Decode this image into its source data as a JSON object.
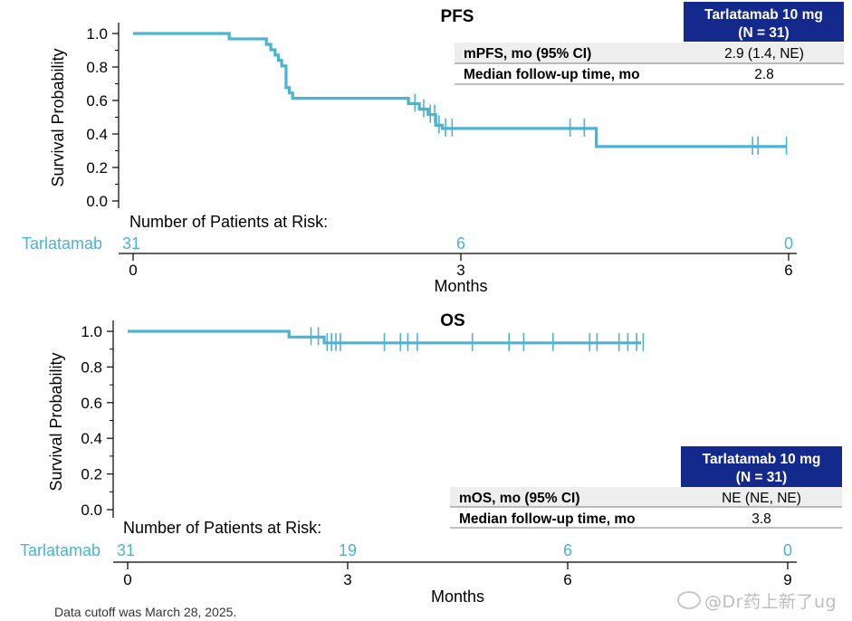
{
  "footer_note": "Data cutoff was March 28, 2025.",
  "watermark": "@Dr药上新了ug",
  "colors": {
    "curve": "#4bb3d4",
    "header_bg": "#14298c",
    "header_text": "#ffffff",
    "row_bg": "#eeeeee",
    "axis": "#000000"
  },
  "chart_data": [
    {
      "type": "line",
      "subtype": "kaplan-meier",
      "title": "PFS",
      "xlabel": "Months",
      "ylabel": "Survival Probability",
      "xlim": [
        0,
        6
      ],
      "ylim": [
        0,
        1
      ],
      "xticks": [
        0,
        3,
        6
      ],
      "yticks": [
        0.0,
        0.2,
        0.4,
        0.6,
        0.8,
        1.0
      ],
      "series": [
        {
          "name": "Tarlatamab",
          "step": [
            [
              0,
              1.0
            ],
            [
              0.88,
              0.968
            ],
            [
              1.22,
              0.935
            ],
            [
              1.26,
              0.903
            ],
            [
              1.3,
              0.871
            ],
            [
              1.33,
              0.839
            ],
            [
              1.36,
              0.806
            ],
            [
              1.4,
              0.677
            ],
            [
              1.43,
              0.645
            ],
            [
              1.46,
              0.613
            ],
            [
              2.52,
              0.581
            ],
            [
              2.62,
              0.548
            ],
            [
              2.7,
              0.516
            ],
            [
              2.77,
              0.452
            ],
            [
              2.83,
              0.433
            ],
            [
              4.22,
              0.433
            ],
            [
              4.24,
              0.325
            ],
            [
              5.98,
              0.325
            ]
          ],
          "censored": [
            [
              2.58,
              0.581
            ],
            [
              2.66,
              0.548
            ],
            [
              2.72,
              0.516
            ],
            [
              2.76,
              0.516
            ],
            [
              2.8,
              0.452
            ],
            [
              2.86,
              0.433
            ],
            [
              2.92,
              0.433
            ],
            [
              4.0,
              0.433
            ],
            [
              4.13,
              0.433
            ],
            [
              5.67,
              0.325
            ],
            [
              5.72,
              0.325
            ],
            [
              5.98,
              0.325
            ]
          ]
        }
      ],
      "risk_table": {
        "title": "Number of Patients at Risk:",
        "row_label": "Tarlatamab",
        "times": [
          0,
          3,
          6
        ],
        "counts": [
          31,
          6,
          0
        ]
      },
      "summary_table": {
        "header_line1": "Tarlatamab 10 mg",
        "header_line2": "(N = 31)",
        "rows": [
          {
            "label": "mPFS, mo (95% CI)",
            "value": "2.9 (1.4, NE)"
          },
          {
            "label": "Median follow-up time, mo",
            "value": "2.8"
          }
        ]
      }
    },
    {
      "type": "line",
      "subtype": "kaplan-meier",
      "title": "OS",
      "xlabel": "Months",
      "ylabel": "Survival Probability",
      "xlim": [
        0,
        9
      ],
      "ylim": [
        0,
        1
      ],
      "xticks": [
        0,
        3,
        6,
        9
      ],
      "yticks": [
        0.0,
        0.2,
        0.4,
        0.6,
        0.8,
        1.0
      ],
      "series": [
        {
          "name": "Tarlatamab",
          "step": [
            [
              0,
              1.0
            ],
            [
              2.2,
              1.0
            ],
            [
              2.2,
              0.968
            ],
            [
              2.68,
              0.968
            ],
            [
              2.68,
              0.935
            ],
            [
              7.0,
              0.935
            ]
          ],
          "censored": [
            [
              2.5,
              0.968
            ],
            [
              2.6,
              0.968
            ],
            [
              2.72,
              0.935
            ],
            [
              2.78,
              0.935
            ],
            [
              2.84,
              0.935
            ],
            [
              2.9,
              0.935
            ],
            [
              3.5,
              0.935
            ],
            [
              3.72,
              0.935
            ],
            [
              3.82,
              0.935
            ],
            [
              3.95,
              0.935
            ],
            [
              4.7,
              0.935
            ],
            [
              5.2,
              0.935
            ],
            [
              5.4,
              0.935
            ],
            [
              5.8,
              0.935
            ],
            [
              6.3,
              0.935
            ],
            [
              6.4,
              0.935
            ],
            [
              6.7,
              0.935
            ],
            [
              6.82,
              0.935
            ],
            [
              6.94,
              0.935
            ],
            [
              7.03,
              0.935
            ]
          ]
        }
      ],
      "risk_table": {
        "title": "Number of Patients at Risk:",
        "row_label": "Tarlatamab",
        "times": [
          0,
          3,
          6,
          9
        ],
        "counts": [
          31,
          19,
          6,
          0
        ]
      },
      "summary_table": {
        "header_line1": "Tarlatamab 10 mg",
        "header_line2": "(N = 31)",
        "rows": [
          {
            "label": "mOS, mo (95% CI)",
            "value": "NE (NE, NE)"
          },
          {
            "label": "Median follow-up time, mo",
            "value": "3.8"
          }
        ]
      }
    }
  ]
}
